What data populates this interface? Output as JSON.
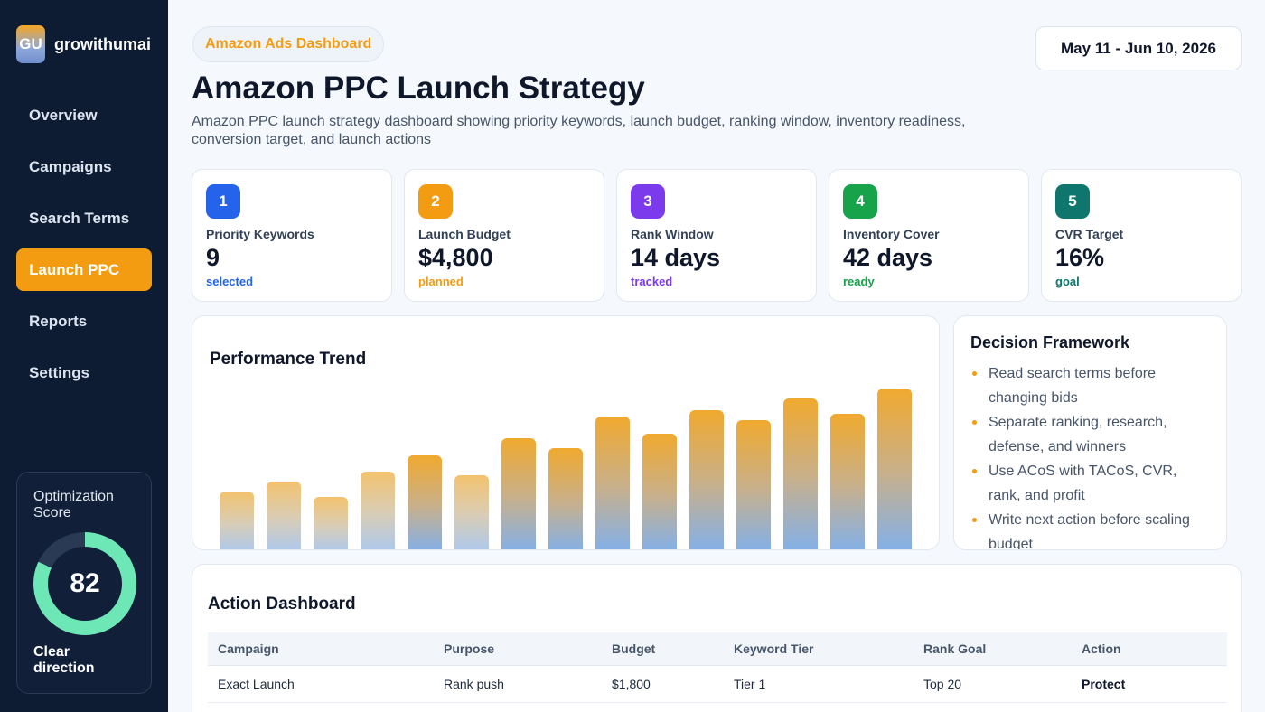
{
  "sidebar": {
    "logo_text": "GU",
    "brand_name": "growithumai",
    "nav": [
      "Overview",
      "Campaigns",
      "Search Terms",
      "Launch PPC",
      "Reports",
      "Settings"
    ],
    "active_index": 3,
    "score": {
      "title": "Optimization Score",
      "value": "82",
      "percent": 82,
      "subtitle": "Clear direction",
      "ring_color": "#6ee7b7",
      "track_color": "#2a3a55"
    }
  },
  "header": {
    "pill": "Amazon Ads Dashboard",
    "date_range": "May 11 - Jun 10, 2026",
    "title": "Amazon PPC Launch Strategy",
    "description": "Amazon PPC launch strategy dashboard showing priority keywords, launch budget, ranking window, inventory readiness, conversion target, and launch actions"
  },
  "kpis": [
    {
      "num": "1",
      "label": "Priority Keywords",
      "value": "9",
      "note": "selected",
      "color": "#2563eb"
    },
    {
      "num": "2",
      "label": "Launch Budget",
      "value": "$4,800",
      "note": "planned",
      "color": "#f39c12"
    },
    {
      "num": "3",
      "label": "Rank Window",
      "value": "14 days",
      "note": "tracked",
      "color": "#7c3aed"
    },
    {
      "num": "4",
      "label": "Inventory Cover",
      "value": "42 days",
      "note": "ready",
      "color": "#16a34a"
    },
    {
      "num": "5",
      "label": "CVR Target",
      "value": "16%",
      "note": "goal",
      "color": "#0f766e"
    }
  ],
  "chart_data": {
    "type": "bar",
    "title": "Performance Trend",
    "values": [
      38,
      44,
      35,
      50,
      60,
      48,
      70,
      64,
      83,
      73,
      87,
      81,
      94,
      85,
      100
    ],
    "ylim": [
      0,
      100
    ],
    "colors": {
      "accent": "#f0a92e",
      "base": "#7fb0ee"
    }
  },
  "decision": {
    "title": "Decision Framework",
    "items": [
      "Read search terms before changing bids",
      "Separate ranking, research, defense, and winners",
      "Use ACoS with TACoS, CVR, rank, and profit",
      "Write next action before scaling budget"
    ]
  },
  "actions": {
    "title": "Action Dashboard",
    "columns": [
      "Campaign",
      "Purpose",
      "Budget",
      "Keyword Tier",
      "Rank Goal",
      "Action"
    ],
    "rows": [
      [
        "Exact Launch",
        "Rank push",
        "$1,800",
        "Tier 1",
        "Top 20",
        "Protect"
      ]
    ]
  }
}
